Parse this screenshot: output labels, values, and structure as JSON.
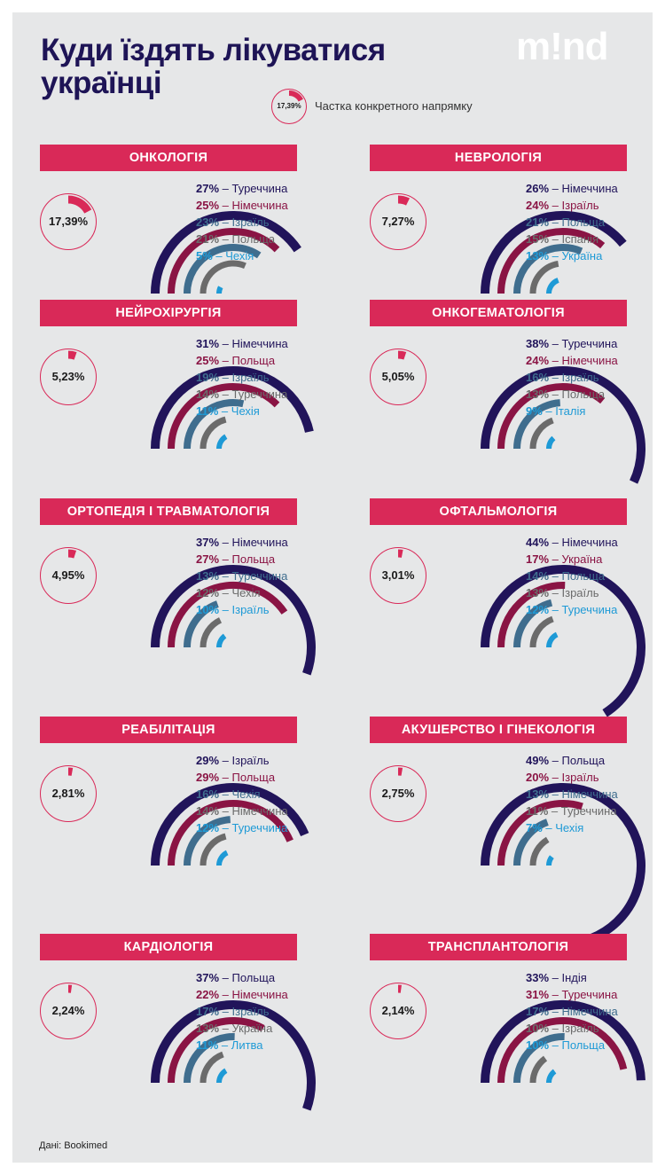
{
  "title": "Куди їздять лікуватися українці",
  "logo": "m!nd",
  "legend": {
    "value": "17,39%",
    "text": "Частка конкретного напрямку",
    "share": 17.39
  },
  "source": "Дані: Bookimed",
  "colors": [
    "#21145a",
    "#8a1444",
    "#3f6d8e",
    "#6b6b6b",
    "#1e9ad6"
  ],
  "accent": "#d92958",
  "chart_data": [
    {
      "type": "radial-bar",
      "title": "ОНКОЛОГІЯ",
      "share": 17.39,
      "share_label": "17,39%",
      "items": [
        {
          "value": 27,
          "label": "Туреччина"
        },
        {
          "value": 25,
          "label": "Німеччина"
        },
        {
          "value": 23,
          "label": "Ізраїль"
        },
        {
          "value": 21,
          "label": "Польща"
        },
        {
          "value": 5,
          "label": "Чехія"
        }
      ]
    },
    {
      "type": "radial-bar",
      "title": "НЕВРОЛОГІЯ",
      "share": 7.27,
      "share_label": "7,27%",
      "items": [
        {
          "value": 26,
          "label": "Німеччина"
        },
        {
          "value": 24,
          "label": "Ізраїль"
        },
        {
          "value": 21,
          "label": "Польща"
        },
        {
          "value": 15,
          "label": "Іспанія"
        },
        {
          "value": 13,
          "label": "Україна"
        }
      ]
    },
    {
      "type": "radial-bar",
      "title": "НЕЙРОХІРУРГІЯ",
      "share": 5.23,
      "share_label": "5,23%",
      "items": [
        {
          "value": 31,
          "label": "Німеччина"
        },
        {
          "value": 25,
          "label": "Польща"
        },
        {
          "value": 19,
          "label": "Ізраїль"
        },
        {
          "value": 14,
          "label": "Туреччина"
        },
        {
          "value": 11,
          "label": "Чехія"
        }
      ]
    },
    {
      "type": "radial-bar",
      "title": "ОНКОГЕМАТОЛОГІЯ",
      "share": 5.05,
      "share_label": "5,05%",
      "items": [
        {
          "value": 38,
          "label": "Туреччина"
        },
        {
          "value": 24,
          "label": "Німеччина"
        },
        {
          "value": 16,
          "label": "Ізраїль"
        },
        {
          "value": 13,
          "label": "Польща"
        },
        {
          "value": 9,
          "label": "Італія"
        }
      ]
    },
    {
      "type": "radial-bar",
      "title": "ОРТОПЕДІЯ І ТРАВМАТОЛОГІЯ",
      "share": 4.95,
      "share_label": "4,95%",
      "items": [
        {
          "value": 37,
          "label": "Німеччина"
        },
        {
          "value": 27,
          "label": "Польща"
        },
        {
          "value": 13,
          "label": "Туреччина"
        },
        {
          "value": 12,
          "label": "Чехія"
        },
        {
          "value": 10,
          "label": "Ізраїль"
        }
      ]
    },
    {
      "type": "radial-bar",
      "title": "ОФТАЛЬМОЛОГІЯ",
      "share": 3.01,
      "share_label": "3,01%",
      "items": [
        {
          "value": 44,
          "label": "Німеччина"
        },
        {
          "value": 17,
          "label": "Україна"
        },
        {
          "value": 14,
          "label": "Польща"
        },
        {
          "value": 13,
          "label": "Ізраїль"
        },
        {
          "value": 12,
          "label": "Туреччина"
        }
      ]
    },
    {
      "type": "radial-bar",
      "title": "РЕАБІЛІТАЦІЯ",
      "share": 2.81,
      "share_label": "2,81%",
      "items": [
        {
          "value": 29,
          "label": "Ізраїль"
        },
        {
          "value": 29,
          "label": "Польща"
        },
        {
          "value": 16,
          "label": "Чехія"
        },
        {
          "value": 14,
          "label": "Німеччина"
        },
        {
          "value": 12,
          "label": "Туреччина"
        }
      ]
    },
    {
      "type": "radial-bar",
      "title": "АКУШЕРСТВО І ГІНЕКОЛОГІЯ",
      "share": 2.75,
      "share_label": "2,75%",
      "items": [
        {
          "value": 49,
          "label": "Польща"
        },
        {
          "value": 20,
          "label": "Ізраїль"
        },
        {
          "value": 13,
          "label": "Німеччина"
        },
        {
          "value": 11,
          "label": "Туреччина"
        },
        {
          "value": 7,
          "label": "Чехія"
        }
      ]
    },
    {
      "type": "radial-bar",
      "title": "КАРДІОЛОГІЯ",
      "share": 2.24,
      "share_label": "2,24%",
      "items": [
        {
          "value": 37,
          "label": "Польща"
        },
        {
          "value": 22,
          "label": "Німеччина"
        },
        {
          "value": 17,
          "label": "Ізраїль"
        },
        {
          "value": 13,
          "label": "Україна"
        },
        {
          "value": 11,
          "label": "Литва"
        }
      ]
    },
    {
      "type": "radial-bar",
      "title": "ТРАНСПЛАНТОЛОГІЯ",
      "share": 2.14,
      "share_label": "2,14%",
      "items": [
        {
          "value": 33,
          "label": "Індія"
        },
        {
          "value": 31,
          "label": "Туреччина"
        },
        {
          "value": 17,
          "label": "Німеччина"
        },
        {
          "value": 10,
          "label": "Ізраїль"
        },
        {
          "value": 10,
          "label": "Польща"
        }
      ]
    }
  ]
}
